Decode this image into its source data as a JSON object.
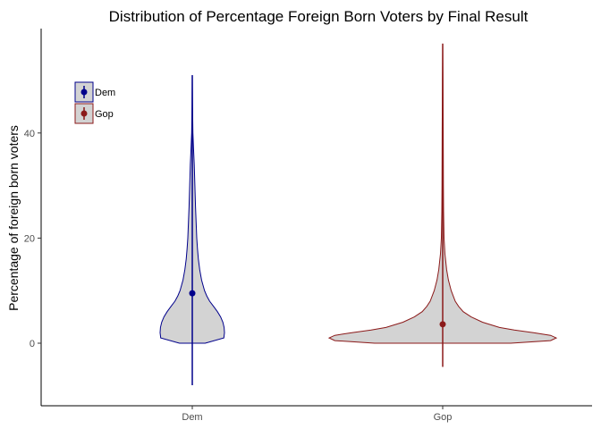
{
  "chart_data": {
    "type": "violin",
    "title": "Distribution of Percentage Foreign Born Voters by Final Result",
    "xlabel": "",
    "ylabel": "Percentage of foreign born voters",
    "categories": [
      "Dem",
      "Gop"
    ],
    "yticks": [
      0,
      20,
      40
    ],
    "ylim": [
      -12,
      59
    ],
    "grid": false,
    "legend": {
      "placement": "top-left",
      "entries": [
        {
          "label": "Dem",
          "color": "#00008b"
        },
        {
          "label": "Gop",
          "color": "#8b1a1a"
        }
      ]
    },
    "series": [
      {
        "category": "Dem",
        "color": "#00008b",
        "fill": "#d3d3d3",
        "point": 9.5,
        "range": [
          -8,
          51
        ],
        "density": [
          {
            "y": 0,
            "w": 0.4
          },
          {
            "y": 1,
            "w": 0.98
          },
          {
            "y": 2,
            "w": 1.0
          },
          {
            "y": 3,
            "w": 0.99
          },
          {
            "y": 4,
            "w": 0.95
          },
          {
            "y": 5,
            "w": 0.88
          },
          {
            "y": 6,
            "w": 0.78
          },
          {
            "y": 7,
            "w": 0.66
          },
          {
            "y": 8,
            "w": 0.54
          },
          {
            "y": 9,
            "w": 0.45
          },
          {
            "y": 10,
            "w": 0.38
          },
          {
            "y": 12,
            "w": 0.29
          },
          {
            "y": 14,
            "w": 0.23
          },
          {
            "y": 16,
            "w": 0.19
          },
          {
            "y": 18,
            "w": 0.16
          },
          {
            "y": 20,
            "w": 0.14
          },
          {
            "y": 23,
            "w": 0.12
          },
          {
            "y": 26,
            "w": 0.1
          },
          {
            "y": 30,
            "w": 0.08
          },
          {
            "y": 34,
            "w": 0.06
          },
          {
            "y": 37,
            "w": 0.04
          },
          {
            "y": 40,
            "w": 0.02
          },
          {
            "y": 45,
            "w": 0.008
          },
          {
            "y": 51,
            "w": 0.0
          }
        ]
      },
      {
        "category": "Gop",
        "color": "#8b1a1a",
        "fill": "#d3d3d3",
        "point": 3.6,
        "range": [
          -4.5,
          57
        ],
        "density": [
          {
            "y": 0,
            "w": 0.6
          },
          {
            "y": 0.5,
            "w": 0.95
          },
          {
            "y": 1,
            "w": 1.0
          },
          {
            "y": 1.5,
            "w": 0.95
          },
          {
            "y": 2,
            "w": 0.8
          },
          {
            "y": 2.5,
            "w": 0.63
          },
          {
            "y": 3,
            "w": 0.5
          },
          {
            "y": 4,
            "w": 0.35
          },
          {
            "y": 5,
            "w": 0.25
          },
          {
            "y": 6,
            "w": 0.18
          },
          {
            "y": 7,
            "w": 0.14
          },
          {
            "y": 8,
            "w": 0.11
          },
          {
            "y": 10,
            "w": 0.075
          },
          {
            "y": 12,
            "w": 0.05
          },
          {
            "y": 14,
            "w": 0.035
          },
          {
            "y": 17,
            "w": 0.02
          },
          {
            "y": 20,
            "w": 0.012
          },
          {
            "y": 25,
            "w": 0.008
          },
          {
            "y": 30,
            "w": 0.006
          },
          {
            "y": 40,
            "w": 0.005
          },
          {
            "y": 50,
            "w": 0.002
          },
          {
            "y": 57,
            "w": 0.0
          }
        ]
      }
    ]
  }
}
